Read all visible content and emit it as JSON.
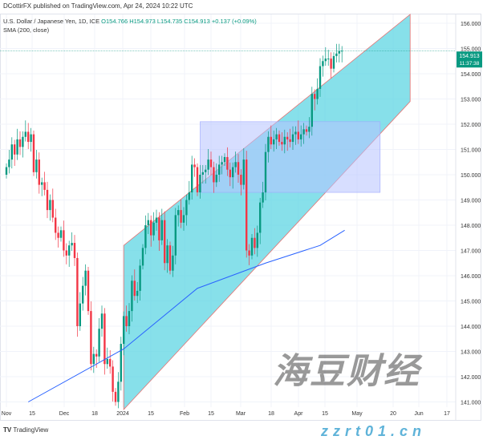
{
  "header": {
    "published": "DCottirFX published on TradingView.com, Apr 24, 2024 10:22 UTC",
    "symbol": "U.S. Dollar / Japanese Yen, 1D, ICE",
    "o": "O154.766",
    "h": "H154.973",
    "l": "L154.735",
    "c": "C154.913",
    "chg": "+0.137 (+0.09%)",
    "indicator": "SMA (200, close)"
  },
  "footer": {
    "brand": "TradingView",
    "brand_icon": "tradingview-logo-icon"
  },
  "watermark": {
    "cn": "海豆财经",
    "url": "zzrt01.cn"
  },
  "colors": {
    "up": "#089981",
    "down": "#f23645",
    "channel": "#5fd6e3",
    "box": "#b7c3ff",
    "sma": "#2962ff",
    "last": "#089981"
  },
  "chart_data": {
    "type": "candlestick",
    "title": "U.S. Dollar / Japanese Yen, 1D, ICE",
    "ylim": [
      140.8,
      156.5
    ],
    "y_ticks": [
      "156.000",
      "155.000",
      "154.000",
      "153.000",
      "152.000",
      "151.000",
      "150.000",
      "149.000",
      "148.000",
      "147.000",
      "146.000",
      "145.000",
      "144.000",
      "143.000",
      "142.000",
      "141.000"
    ],
    "x_ticks": [
      "Nov",
      "15",
      "Dec",
      "18",
      "2024",
      "15",
      "Feb",
      "15",
      "Mar",
      "18",
      "Apr",
      "15",
      "May",
      "20",
      "Jun",
      "17"
    ],
    "last_price": "154.913",
    "countdown": "11:37:38",
    "closes": [
      150.3,
      150.6,
      151.2,
      150.8,
      151.4,
      151.1,
      151.5,
      151.7,
      151.3,
      151.6,
      150.1,
      150.6,
      149.6,
      149.7,
      149.4,
      148.6,
      149.0,
      148.3,
      147.7,
      147.5,
      147.8,
      147.0,
      146.8,
      147.2,
      147.3,
      146.7,
      144.0,
      144.9,
      145.6,
      146.2,
      144.6,
      142.5,
      142.9,
      142.8,
      143.9,
      144.5,
      142.5,
      142.7,
      142.4,
      141.4,
      141.0,
      141.8,
      143.3,
      144.4,
      144.0,
      144.6,
      145.8,
      145.2,
      145.4,
      146.4,
      147.1,
      148.0,
      148.2,
      147.6,
      148.1,
      148.3,
      147.4,
      148.2,
      146.5,
      147.2,
      146.2,
      146.8,
      148.4,
      148.6,
      148.1,
      148.4,
      149.0,
      149.3,
      150.4,
      150.3,
      149.3,
      150.0,
      150.1,
      150.2,
      150.6,
      150.3,
      149.7,
      150.0,
      150.4,
      150.5,
      150.7,
      150.2,
      149.9,
      150.3,
      150.5,
      150.0,
      149.6,
      150.6,
      147.0,
      146.8,
      147.5,
      147.1,
      147.7,
      148.9,
      149.3,
      150.9,
      151.5,
      151.2,
      151.4,
      151.6,
      151.3,
      151.2,
      151.5,
      151.4,
      151.3,
      151.6,
      151.7,
      151.4,
      151.6,
      151.8,
      151.7,
      151.9,
      153.2,
      153.0,
      153.4,
      154.3,
      154.5,
      154.6,
      154.6,
      154.2,
      154.7,
      154.8,
      154.9,
      154.913
    ],
    "sma": [
      [
        8,
        141.0
      ],
      [
        43,
        143.1
      ],
      [
        70,
        145.5
      ],
      [
        95,
        146.5
      ],
      [
        115,
        147.2
      ],
      [
        124,
        147.8
      ]
    ],
    "channel": {
      "upper": [
        [
          43,
          147.2
        ],
        [
          148,
          156.35
        ]
      ],
      "lower": [
        [
          43,
          140.7
        ],
        [
          148,
          152.9
        ]
      ]
    },
    "rectangle": {
      "bars": [
        71,
        137
      ],
      "prices": [
        149.3,
        152.1
      ]
    }
  }
}
